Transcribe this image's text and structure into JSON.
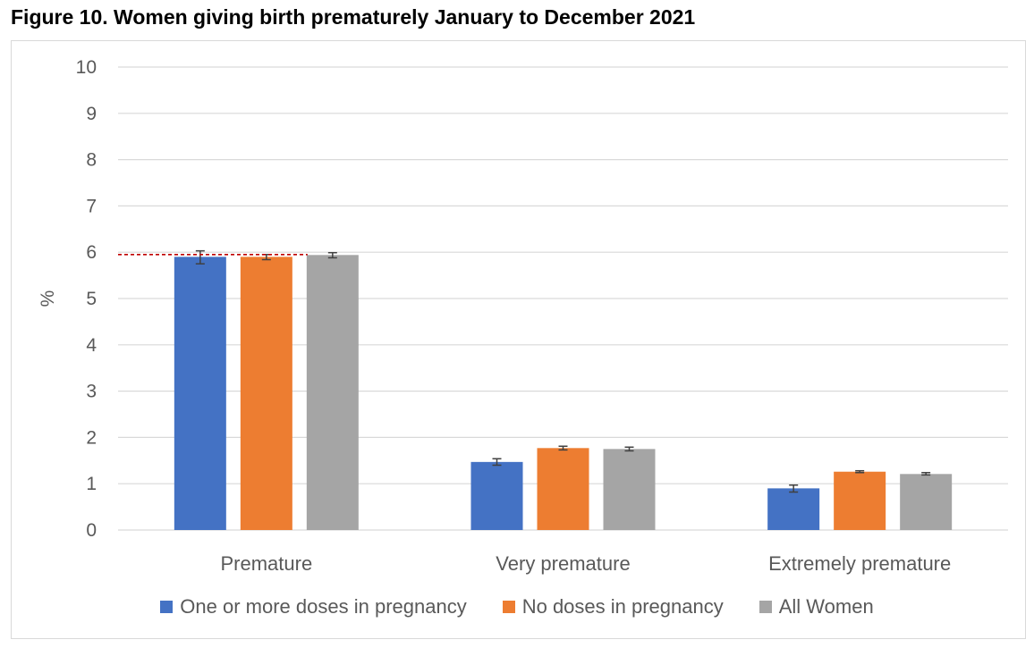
{
  "figure_title": "Figure 10. Women giving birth prematurely January to December 2021",
  "chart_data": {
    "type": "bar",
    "title": "Figure 10. Women giving birth prematurely January to December 2021",
    "xlabel": "",
    "ylabel": "%",
    "ylim": [
      0,
      10
    ],
    "yticks": [
      "0",
      "1",
      "2",
      "3",
      "4",
      "5",
      "6",
      "7",
      "8",
      "9",
      "10"
    ],
    "grid": true,
    "legend_position": "bottom",
    "categories": [
      "Premature",
      "Very premature",
      "Extremely premature"
    ],
    "series": [
      {
        "name": "One or more doses in pregnancy",
        "color": "#4472c4",
        "values": [
          5.9,
          1.47,
          0.9
        ],
        "error_low": [
          5.75,
          1.4,
          0.82
        ],
        "error_high": [
          6.03,
          1.54,
          0.97
        ]
      },
      {
        "name": "No doses in pregnancy",
        "color": "#ed7d31",
        "values": [
          5.9,
          1.77,
          1.26
        ],
        "error_low": [
          5.84,
          1.73,
          1.24
        ],
        "error_high": [
          5.95,
          1.81,
          1.28
        ]
      },
      {
        "name": "All Women",
        "color": "#a5a5a5",
        "values": [
          5.94,
          1.75,
          1.21
        ],
        "error_low": [
          5.88,
          1.71,
          1.19
        ],
        "error_high": [
          5.99,
          1.79,
          1.24
        ]
      }
    ],
    "reference_line": {
      "value": 5.95,
      "color": "#c00000",
      "style": "dashed"
    }
  }
}
